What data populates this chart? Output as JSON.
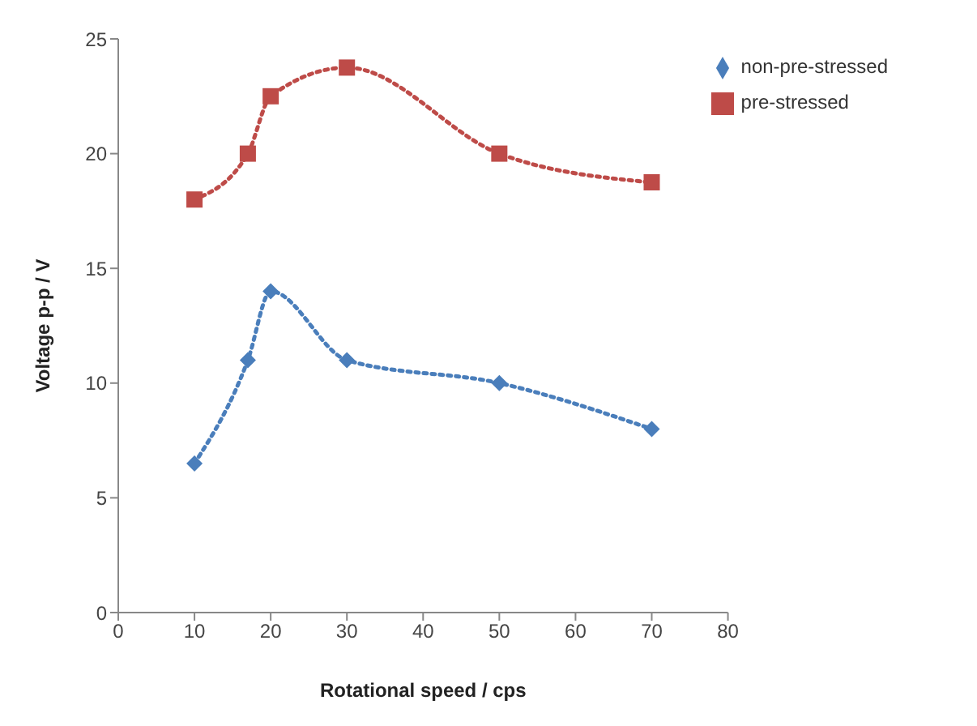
{
  "chart_data": {
    "type": "line",
    "xlabel": "Rotational speed / cps",
    "ylabel": "Voltage p-p / V",
    "x": [
      10,
      17,
      20,
      30,
      50,
      70
    ],
    "series": [
      {
        "name": "non-pre-stressed",
        "color": "#4a7ebb",
        "marker": "diamond",
        "values": [
          6.5,
          11,
          14,
          11,
          10,
          8
        ]
      },
      {
        "name": "pre-stressed",
        "color": "#be4b48",
        "marker": "square",
        "values": [
          18,
          20,
          22.5,
          23.75,
          20,
          18.75
        ]
      }
    ],
    "xlim": [
      0,
      80
    ],
    "xticks": [
      0,
      10,
      20,
      30,
      40,
      50,
      60,
      70,
      80
    ],
    "ylim": [
      0,
      25
    ],
    "yticks": [
      0,
      5,
      10,
      15,
      20,
      25
    ],
    "grid": false,
    "legend": "top right",
    "line_style": "dotted"
  }
}
